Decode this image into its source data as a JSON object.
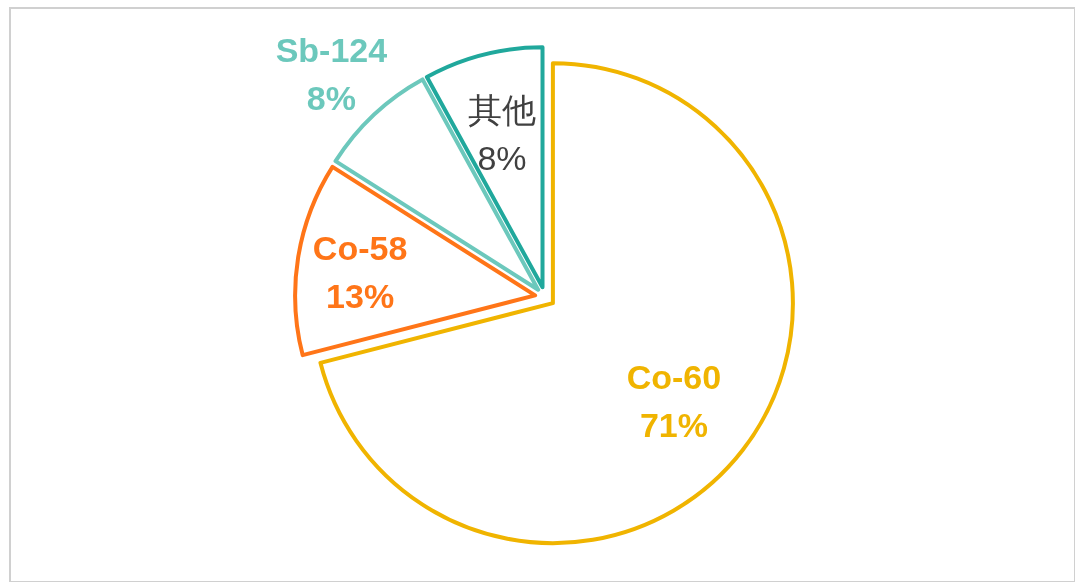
{
  "chart_data": {
    "type": "pie",
    "categories": [
      "Co-60",
      "Co-58",
      "Sb-124",
      "其他"
    ],
    "values": [
      71,
      13,
      8,
      8
    ],
    "colors": [
      "#f0b400",
      "#ff7518",
      "#6cc8bc",
      "#20a89c"
    ],
    "value_labels": [
      "71%",
      "13%",
      "8%",
      "8%"
    ]
  }
}
